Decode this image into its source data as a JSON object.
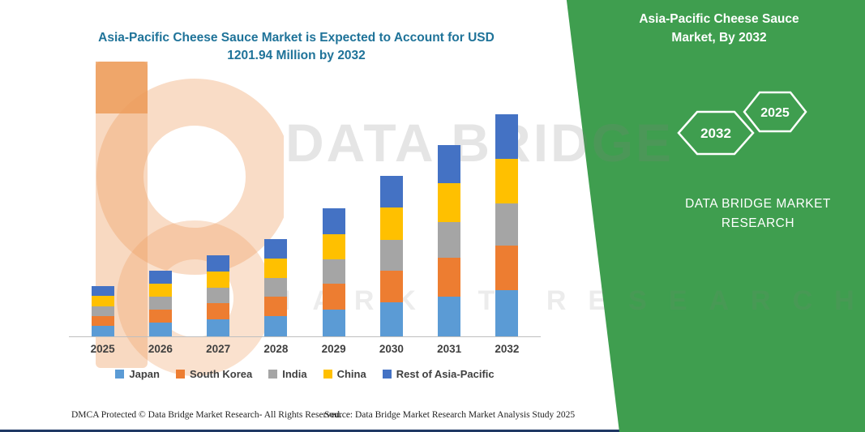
{
  "page": {
    "watermark_line1": "DATA BRIDGE",
    "watermark_line2": "MARKET RESEARCH",
    "footer": {
      "dmca": "DMCA Protected © Data Bridge Market Research-  All Rights Reserved.",
      "source": "Source: Data Bridge Market Research  Market Analysis Study 2025"
    }
  },
  "side_panel": {
    "title": "Asia-Pacific Cheese Sauce Market, By 2032",
    "hexagons": [
      {
        "label": "2032"
      },
      {
        "label": "2025"
      }
    ],
    "brand": "DATA BRIDGE MARKET RESEARCH",
    "accent_green": "#3F9E4F"
  },
  "chart_data": {
    "type": "bar",
    "stacked": true,
    "title": "Asia-Pacific Cheese Sauce Market is Expected to Account for USD 1201.94 Million by 2032",
    "categories": [
      "2025",
      "2026",
      "2027",
      "2028",
      "2029",
      "2030",
      "2031",
      "2032"
    ],
    "series": [
      {
        "name": "Japan",
        "color": "#5B9BD5",
        "values": [
          57,
          75,
          92,
          111,
          145,
          183,
          217,
          252
        ]
      },
      {
        "name": "South Korea",
        "color": "#ED7D31",
        "values": [
          54,
          71,
          87,
          106,
          138,
          174,
          207,
          240
        ]
      },
      {
        "name": "India",
        "color": "#A5A5A5",
        "values": [
          52,
          67,
          83,
          100,
          132,
          165,
          196,
          229
        ]
      },
      {
        "name": "China",
        "color": "#FFC000",
        "values": [
          55,
          71,
          88,
          106,
          139,
          174,
          207,
          241
        ]
      },
      {
        "name": "Rest of Asia-Pacific",
        "color": "#4472C4",
        "values": [
          54,
          71,
          87,
          105,
          138,
          173,
          206,
          240
        ]
      }
    ],
    "totals": [
      272,
      355,
      437,
      528,
      692,
      869,
      1033,
      1202
    ],
    "unit": "USD Million",
    "ylim": [
      0,
      1250
    ],
    "grid": false,
    "legend_position": "bottom",
    "xlabel": "",
    "ylabel": ""
  }
}
